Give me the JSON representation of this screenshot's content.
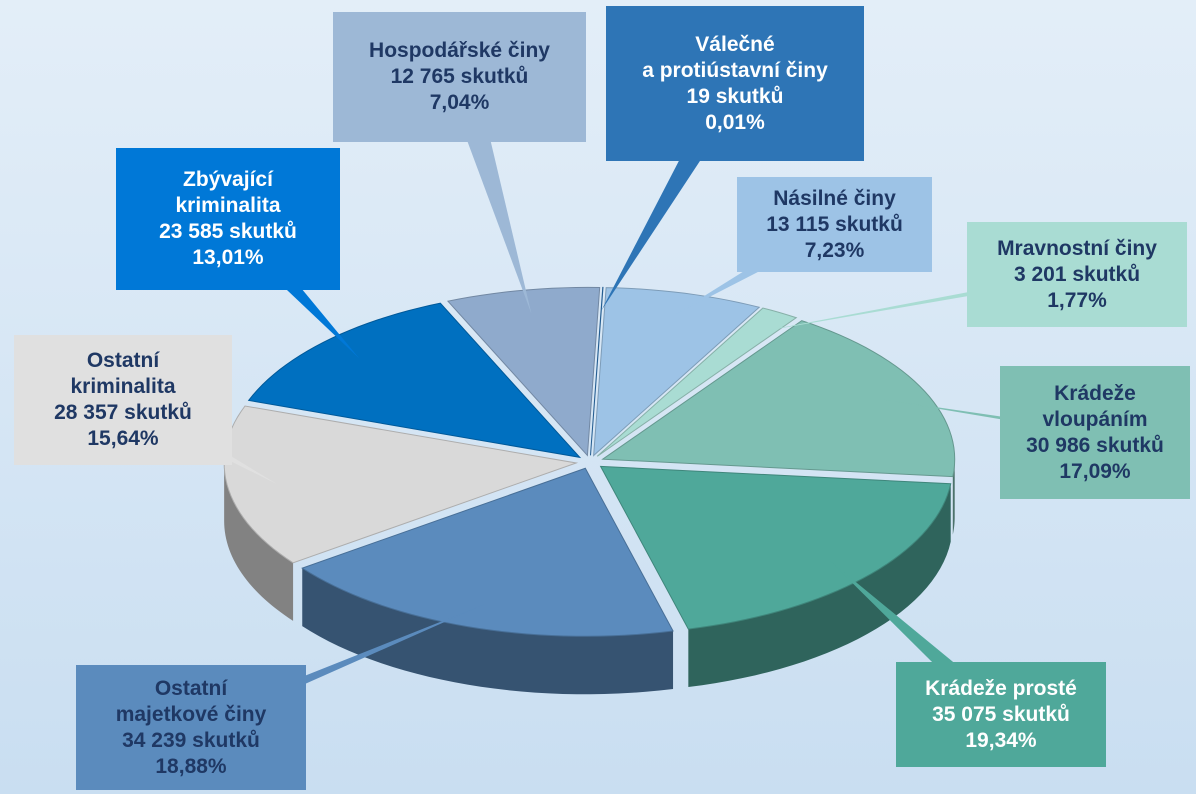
{
  "chart_data": {
    "type": "pie",
    "categories": [
      "Válečné\na protiústavní činy",
      "Násilné  činy",
      "Mravnostní činy",
      "Krádeže\nvloupáním",
      "Krádeže prosté",
      "Ostatní\nmajetkové činy",
      "Ostatní\nkriminalita",
      "Zbývající\nkriminalita",
      "Hospodářské činy"
    ],
    "values": [
      0.01,
      7.23,
      1.77,
      17.09,
      19.34,
      18.88,
      15.64,
      13.01,
      7.04
    ],
    "value_labels": [
      "0,01%",
      "7,23%",
      "1,77%",
      "17,09%",
      "19,34%",
      "18,88%",
      "15,64%",
      "13,01%",
      "7,04%"
    ],
    "counts": [
      19,
      13115,
      3201,
      30986,
      35075,
      34239,
      28357,
      23585,
      12765
    ],
    "count_labels": [
      "19 skutků",
      "13 115 skutků",
      "3 201 skutků",
      "30 986 skutků",
      "35 075 skutků",
      "34 239 skutků",
      "28 357 skutků",
      "23 585 skutků",
      "12 765 skutků"
    ],
    "colors": [
      "#2e75b6",
      "#9dc3e6",
      "#a9dcd3",
      "#7fbfb3",
      "#4fa89a",
      "#5b8bbd",
      "#d9d9d9",
      "#0070c0",
      "#8faacc"
    ]
  }
}
